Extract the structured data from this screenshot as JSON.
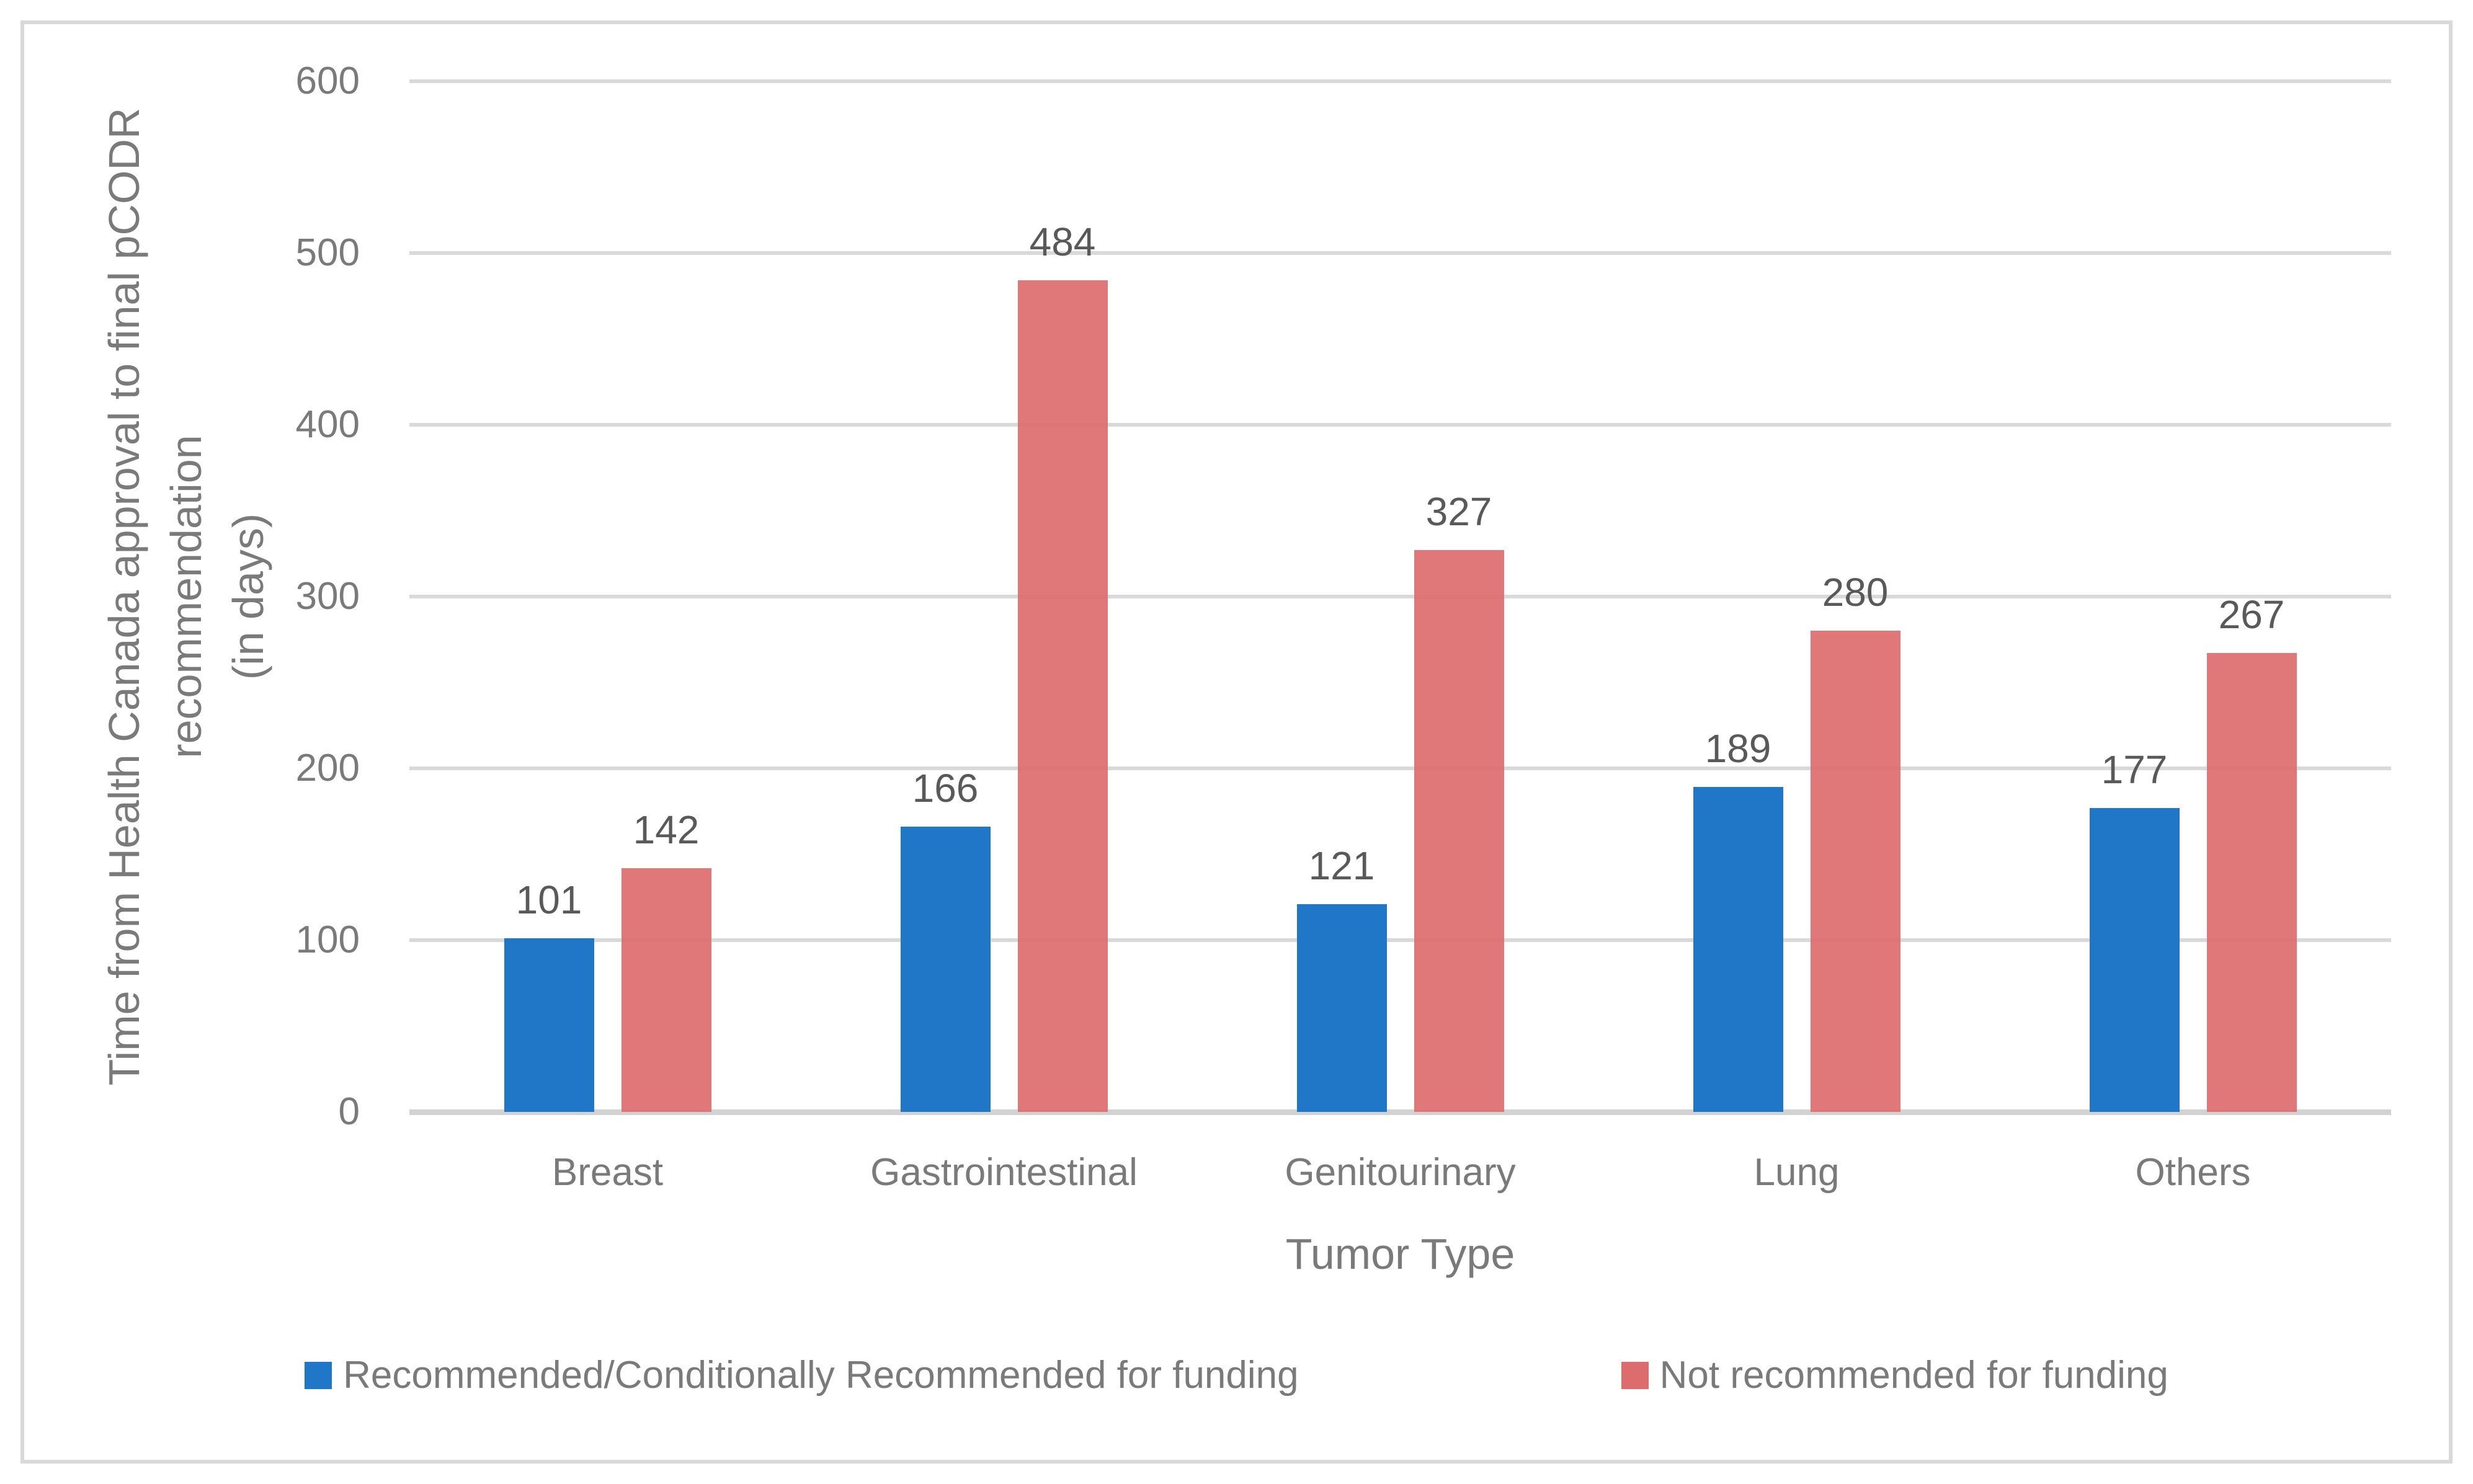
{
  "figure": {
    "background": "#ffffff",
    "frame_color": "#d9d9d9"
  },
  "chart_data": {
    "type": "bar",
    "title": "",
    "categories": [
      "Breast",
      "Gastrointestinal",
      "Genitourinary",
      "Lung",
      "Others"
    ],
    "series": [
      {
        "name": "Recommended/Conditionally Recommended for funding",
        "color": "#2076c7",
        "values": [
          101,
          166,
          121,
          189,
          177
        ]
      },
      {
        "name": "Not recommended for funding",
        "color": "#dd6c6e",
        "values": [
          142,
          484,
          327,
          280,
          267
        ]
      }
    ],
    "xlabel": "Tumor Type",
    "ylabel": "Time from Health Canada approval to final pCODR recommendation (in days)",
    "ylabel_lines": [
      "Time from Health Canada approval to final pCODR",
      "recommendation",
      "(in days)"
    ],
    "ylim": [
      0,
      600
    ],
    "ytick_step": 100,
    "yticks": [
      600,
      500,
      400,
      300,
      200,
      100,
      0
    ],
    "grid": true,
    "data_labels": true,
    "legend_position": "bottom",
    "colors": {
      "grid_line": "#d9d9d9",
      "axis_line": "#d2d2d2",
      "tick_text": "#7a7a7a",
      "data_label_text": "#595959",
      "axis_title_text": "#7a7a7a",
      "legend_text": "#7a7a7a"
    }
  }
}
